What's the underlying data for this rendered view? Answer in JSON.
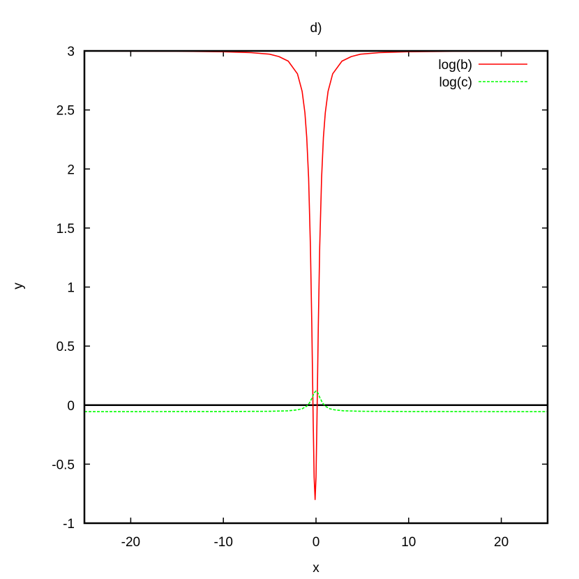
{
  "chart_data": {
    "type": "line",
    "title": "d)",
    "xlabel": "x",
    "ylabel": "y",
    "xlim": [
      -25,
      25
    ],
    "ylim": [
      -1,
      3
    ],
    "xticks": [
      -20,
      -10,
      0,
      10,
      20
    ],
    "yticks": [
      -1,
      -0.5,
      0,
      0.5,
      1,
      1.5,
      2,
      2.5,
      3
    ],
    "xtick_labels": [
      "-20",
      "-10",
      "0",
      "10",
      "20"
    ],
    "ytick_labels": [
      "-1",
      "-0.5",
      "0",
      "0.5",
      "1",
      "1.5",
      "2",
      "2.5",
      "3"
    ],
    "grid": false,
    "zero_axis": true,
    "legend": "top-right",
    "series": [
      {
        "name": "log(b)",
        "color": "#ff0000",
        "style": "solid",
        "x": [
          -25,
          -20,
          -15,
          -10,
          -7,
          -5,
          -4,
          -3,
          -2,
          -1.5,
          -1.2,
          -1.0,
          -0.8,
          -0.6,
          -0.45,
          -0.3,
          -0.2,
          -0.1,
          0,
          0.1,
          0.25,
          0.4,
          0.6,
          0.8,
          1.0,
          1.3,
          1.8,
          2.8,
          3.8,
          4.8,
          6.8,
          9.8,
          14.8,
          19.8,
          25
        ],
        "y": [
          2.999,
          2.998,
          2.997,
          2.993,
          2.985,
          2.972,
          2.952,
          2.914,
          2.806,
          2.658,
          2.476,
          2.267,
          1.924,
          1.34,
          0.67,
          -0.15,
          -0.61,
          -0.8,
          -0.61,
          -0.15,
          0.67,
          1.34,
          1.924,
          2.267,
          2.476,
          2.658,
          2.806,
          2.914,
          2.952,
          2.972,
          2.985,
          2.993,
          2.997,
          2.998,
          2.999
        ]
      },
      {
        "name": "log(c)",
        "color": "#00ff00",
        "style": "dashed",
        "x": [
          -25,
          -10,
          -5,
          -3,
          -2,
          -1.5,
          -1,
          -0.7,
          -0.4,
          -0.2,
          0,
          0.2,
          0.4,
          0.7,
          1,
          1.5,
          2,
          3,
          5,
          10,
          25
        ],
        "y": [
          -0.055,
          -0.054,
          -0.052,
          -0.048,
          -0.04,
          -0.031,
          -0.009,
          0.019,
          0.066,
          0.103,
          0.12,
          0.103,
          0.066,
          0.019,
          -0.009,
          -0.031,
          -0.04,
          -0.048,
          -0.052,
          -0.054,
          -0.055
        ]
      }
    ]
  }
}
